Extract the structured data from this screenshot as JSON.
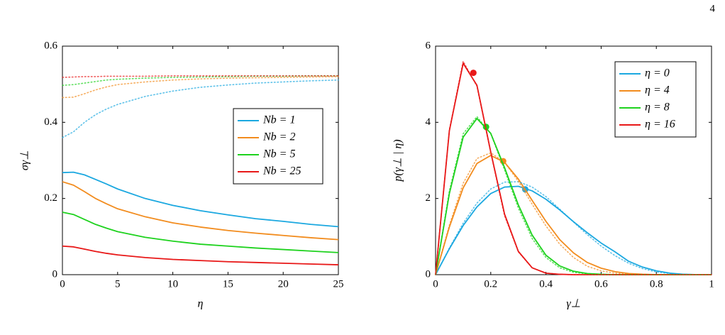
{
  "page_number": "4",
  "chart_data": [
    {
      "type": "line",
      "xlabel": "η",
      "ylabel": "σγ⊥",
      "xlim": [
        0,
        25
      ],
      "ylim": [
        0,
        0.6
      ],
      "xticks": [
        0,
        5,
        10,
        15,
        20,
        25
      ],
      "yticks": [
        0,
        0.2,
        0.4,
        0.6
      ],
      "legend": "right",
      "x": [
        0,
        1,
        2,
        3,
        4,
        5,
        7.5,
        10,
        12.5,
        15,
        17.5,
        20,
        22.5,
        25
      ],
      "series": [
        {
          "name": "Nb = 1",
          "color": "#1ba8e0",
          "values": [
            0.268,
            0.269,
            0.262,
            0.25,
            0.238,
            0.225,
            0.2,
            0.182,
            0.168,
            0.157,
            0.147,
            0.14,
            0.132,
            0.126
          ]
        },
        {
          "name": "Nb = 2",
          "color": "#f28c1e",
          "values": [
            0.244,
            0.235,
            0.218,
            0.2,
            0.186,
            0.173,
            0.152,
            0.136,
            0.125,
            0.116,
            0.109,
            0.103,
            0.097,
            0.092
          ]
        },
        {
          "name": "Nb = 5",
          "color": "#1ed21e",
          "values": [
            0.164,
            0.158,
            0.145,
            0.132,
            0.122,
            0.113,
            0.098,
            0.088,
            0.08,
            0.075,
            0.07,
            0.066,
            0.062,
            0.058
          ]
        },
        {
          "name": "Nb = 25",
          "color": "#e81818",
          "values": [
            0.075,
            0.073,
            0.067,
            0.061,
            0.056,
            0.052,
            0.045,
            0.04,
            0.037,
            0.034,
            0.032,
            0.03,
            0.028,
            0.026
          ]
        },
        {
          "color": "#1ba8e0",
          "dash": "dotted",
          "values": [
            0.36,
            0.375,
            0.4,
            0.42,
            0.435,
            0.447,
            0.468,
            0.482,
            0.492,
            0.498,
            0.503,
            0.506,
            0.509,
            0.511
          ]
        },
        {
          "color": "#f28c1e",
          "dash": "dotted",
          "values": [
            0.465,
            0.466,
            0.475,
            0.485,
            0.493,
            0.499,
            0.506,
            0.511,
            0.514,
            0.516,
            0.517,
            0.518,
            0.519,
            0.52
          ]
        },
        {
          "color": "#1ed21e",
          "dash": "dotted",
          "values": [
            0.497,
            0.499,
            0.503,
            0.507,
            0.511,
            0.513,
            0.516,
            0.518,
            0.519,
            0.52,
            0.521,
            0.521,
            0.522,
            0.522
          ]
        },
        {
          "color": "#e81818",
          "dash": "dotted",
          "values": [
            0.518,
            0.519,
            0.52,
            0.52,
            0.521,
            0.521,
            0.521,
            0.522,
            0.522,
            0.522,
            0.522,
            0.522,
            0.522,
            0.522
          ]
        }
      ]
    },
    {
      "type": "line",
      "xlabel": "γ⊥",
      "ylabel": "p(γ⊥ | η)",
      "xlim": [
        0,
        1
      ],
      "ylim": [
        0,
        6
      ],
      "xticks": [
        0,
        0.2,
        0.4,
        0.6,
        0.8,
        1
      ],
      "yticks": [
        0,
        2,
        4,
        6
      ],
      "legend": "top-right",
      "x": [
        0,
        0.05,
        0.1,
        0.15,
        0.2,
        0.25,
        0.3,
        0.35,
        0.4,
        0.45,
        0.5,
        0.55,
        0.6,
        0.65,
        0.7,
        0.75,
        0.8,
        0.85,
        0.9,
        0.95,
        1
      ],
      "series": [
        {
          "name": "η = 0",
          "color": "#1ba8e0",
          "marker_x": 0.325,
          "marker_y": 2.24,
          "values": [
            0,
            0.68,
            1.29,
            1.78,
            2.13,
            2.3,
            2.32,
            2.2,
            1.98,
            1.7,
            1.39,
            1.1,
            0.83,
            0.6,
            0.35,
            0.2,
            0.1,
            0.04,
            0.01,
            0,
            0
          ]
        },
        {
          "name": "η = 4",
          "color": "#f28c1e",
          "marker_x": 0.245,
          "marker_y": 2.98,
          "values": [
            0,
            1.25,
            2.28,
            2.92,
            3.13,
            2.95,
            2.51,
            1.95,
            1.4,
            0.92,
            0.57,
            0.32,
            0.17,
            0.08,
            0.03,
            0.01,
            0,
            0,
            0,
            0,
            0
          ]
        },
        {
          "name": "η = 8",
          "color": "#1ed21e",
          "marker_x": 0.183,
          "marker_y": 3.88,
          "values": [
            0,
            2.13,
            3.61,
            4.1,
            3.71,
            2.81,
            1.83,
            1.04,
            0.51,
            0.23,
            0.09,
            0.03,
            0.01,
            0,
            0,
            0,
            0,
            0,
            0,
            0,
            0
          ]
        },
        {
          "name": "η = 16",
          "color": "#e81818",
          "marker_x": 0.137,
          "marker_y": 5.3,
          "values": [
            0,
            3.78,
            5.55,
            4.97,
            3.22,
            1.59,
            0.61,
            0.18,
            0.04,
            0.01,
            0,
            0,
            0,
            0,
            0,
            0,
            0,
            0,
            0,
            0,
            0
          ]
        },
        {
          "color": "#1ba8e0",
          "dash": "dotted",
          "values": [
            0,
            0.7,
            1.35,
            1.88,
            2.25,
            2.43,
            2.44,
            2.3,
            2.05,
            1.72,
            1.38,
            1.05,
            0.75,
            0.5,
            0.3,
            0.16,
            0.07,
            0.03,
            0.01,
            0,
            0
          ]
        },
        {
          "color": "#f28c1e",
          "dash": "dotted",
          "values": [
            0,
            1.3,
            2.4,
            3.05,
            3.2,
            2.95,
            2.45,
            1.85,
            1.28,
            0.8,
            0.45,
            0.22,
            0.1,
            0.04,
            0.01,
            0,
            0,
            0,
            0,
            0,
            0
          ]
        },
        {
          "color": "#1ed21e",
          "dash": "dotted",
          "values": [
            0,
            2.2,
            3.7,
            4.15,
            3.7,
            2.75,
            1.75,
            0.95,
            0.45,
            0.18,
            0.06,
            0.02,
            0,
            0,
            0,
            0,
            0,
            0,
            0,
            0,
            0
          ]
        },
        {
          "color": "#e81818",
          "dash": "dotted",
          "values": [
            0,
            3.8,
            5.6,
            4.95,
            3.2,
            1.55,
            0.6,
            0.18,
            0.04,
            0.01,
            0,
            0,
            0,
            0,
            0,
            0,
            0,
            0,
            0,
            0,
            0
          ]
        }
      ]
    }
  ]
}
